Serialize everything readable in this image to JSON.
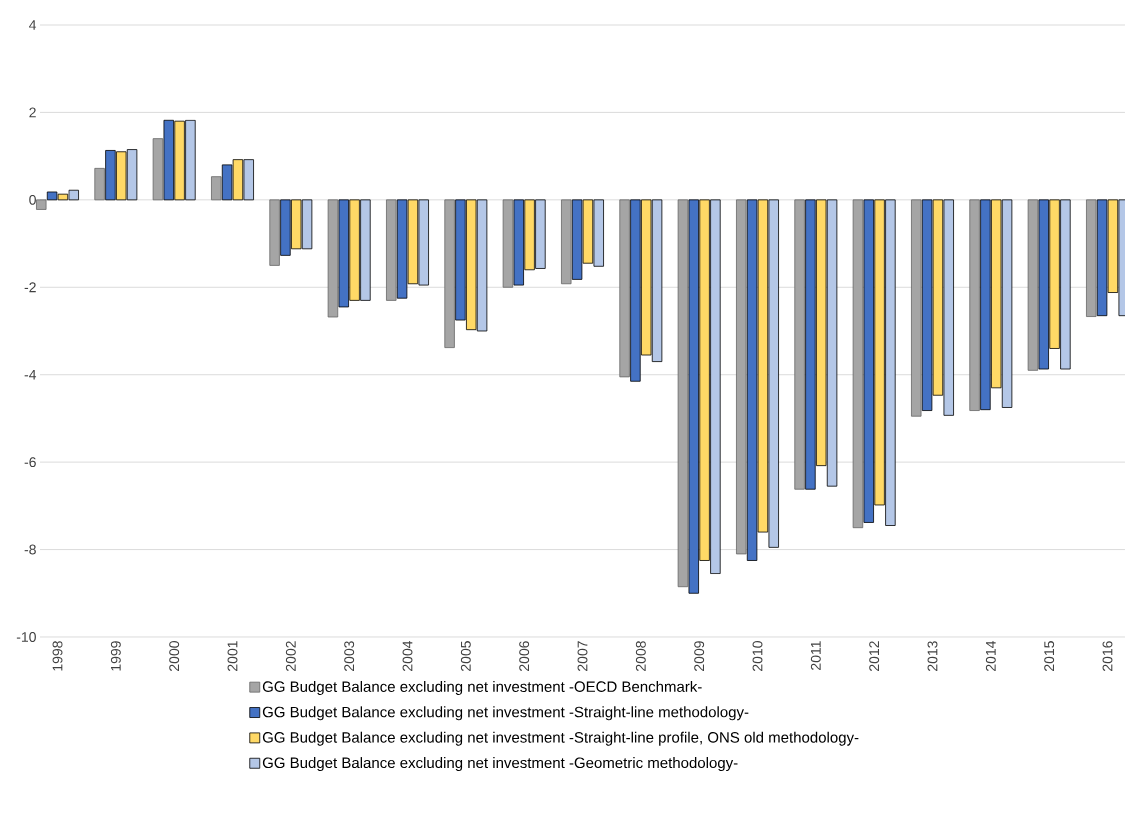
{
  "chart_data": {
    "type": "bar",
    "categories": [
      "1998",
      "1999",
      "2000",
      "2001",
      "2002",
      "2003",
      "2004",
      "2005",
      "2006",
      "2007",
      "2008",
      "2009",
      "2010",
      "2011",
      "2012",
      "2013",
      "2014",
      "2015",
      "2016"
    ],
    "series": [
      {
        "name": "GG Budget Balance excluding net investment -OECD Benchmark-",
        "color": "#a5a5a5",
        "values": [
          -0.22,
          0.72,
          1.4,
          0.53,
          -1.5,
          -2.68,
          -2.3,
          -3.38,
          -2.0,
          -1.92,
          -4.05,
          -8.85,
          -8.1,
          -6.62,
          -7.5,
          -4.95,
          -4.82,
          -3.9,
          -2.67
        ]
      },
      {
        "name": "GG Budget Balance excluding net investment -Straight-line methodology-",
        "color": "#4472c4",
        "values": [
          0.18,
          1.13,
          1.82,
          0.8,
          -1.27,
          -2.45,
          -2.25,
          -2.75,
          -1.95,
          -1.82,
          -4.15,
          -9.0,
          -8.25,
          -6.62,
          -7.38,
          -4.82,
          -4.8,
          -3.87,
          -2.65
        ]
      },
      {
        "name": "GG Budget Balance excluding net investment -Straight-line profile, ONS old methodology-",
        "color": "#ffd966",
        "values": [
          0.13,
          1.1,
          1.8,
          0.92,
          -1.12,
          -2.3,
          -1.92,
          -2.97,
          -1.6,
          -1.45,
          -3.55,
          -8.25,
          -7.6,
          -6.08,
          -6.98,
          -4.47,
          -4.3,
          -3.4,
          -2.12
        ]
      },
      {
        "name": "GG Budget Balance excluding net investment -Geometric methodology-",
        "color": "#b4c7e7",
        "values": [
          0.22,
          1.15,
          1.82,
          0.92,
          -1.12,
          -2.3,
          -1.95,
          -3.0,
          -1.57,
          -1.52,
          -3.7,
          -8.55,
          -7.95,
          -6.55,
          -7.45,
          -4.93,
          -4.75,
          -3.87,
          -2.65
        ]
      }
    ],
    "ylim": [
      -10,
      4
    ],
    "yticks": [
      -10,
      -8,
      -6,
      -4,
      -2,
      0,
      2,
      4
    ],
    "grid": "y",
    "legend": "bottom"
  }
}
